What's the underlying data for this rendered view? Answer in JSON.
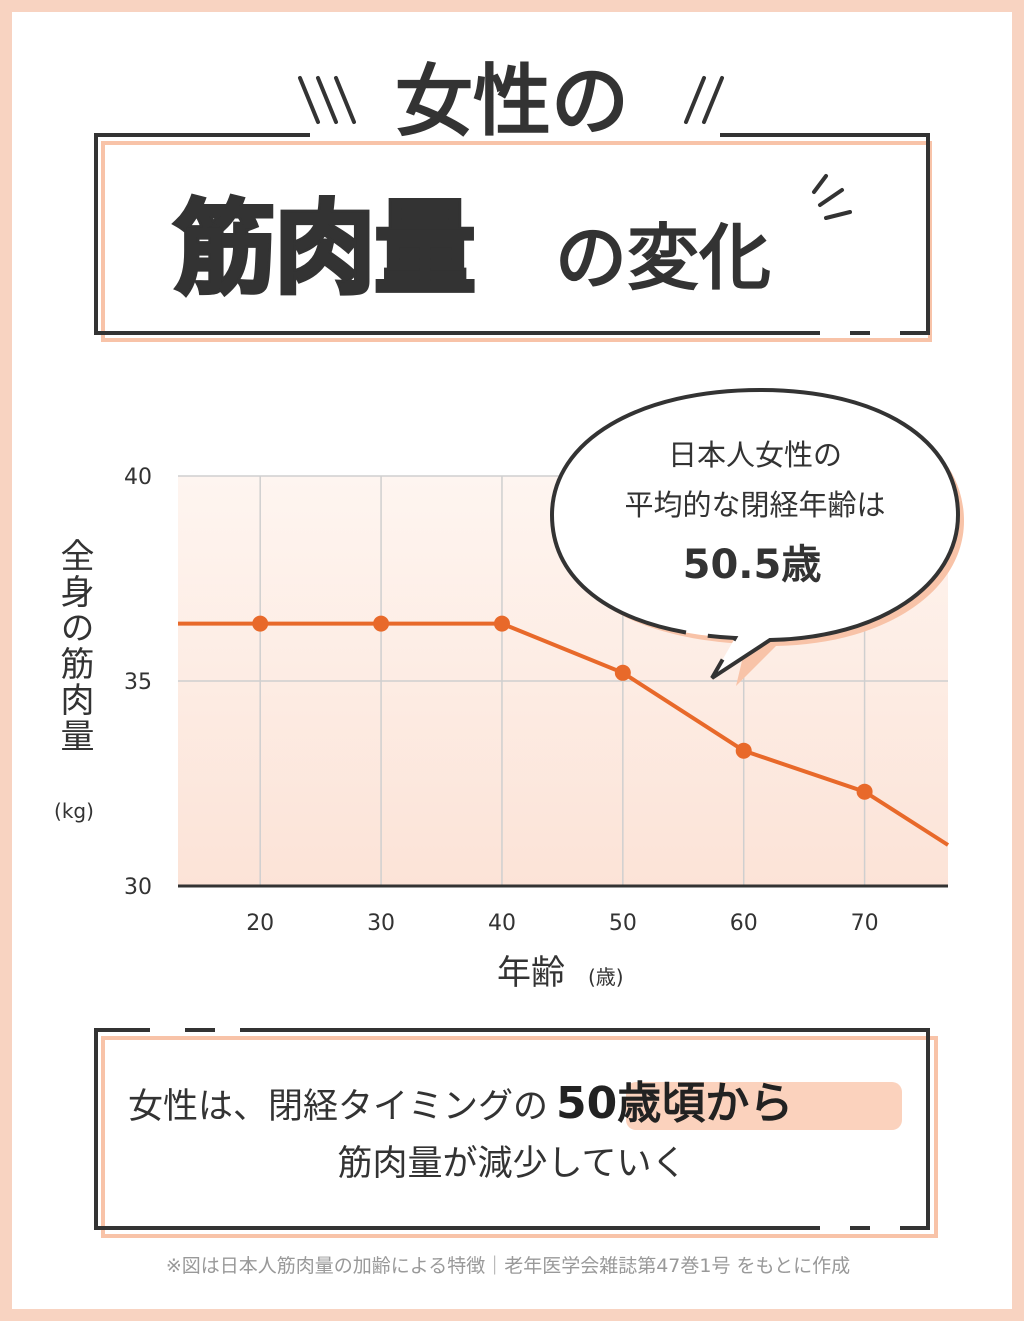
{
  "header": {
    "line1": "女性の",
    "highlight": "筋肉量",
    "line2": "の変化"
  },
  "chart_data": {
    "type": "line",
    "x": [
      13.2,
      20,
      30,
      40,
      50,
      60,
      70,
      76.9
    ],
    "series": [
      {
        "color": "#e8692a",
        "values": [
          36.4,
          36.4,
          36.4,
          36.4,
          35.2,
          33.3,
          32.3,
          31.0
        ]
      }
    ],
    "xlim": [
      13.2,
      76.9
    ],
    "ylim": [
      30,
      40
    ],
    "xticks": [
      20,
      30,
      40,
      50,
      60,
      70
    ],
    "yticks": [
      30,
      35,
      40
    ],
    "xlabel": "年齢",
    "xlabel_unit": "(歳)",
    "ylabel": "全身の筋肉量",
    "ylabel_unit": "(kg)",
    "grid": true,
    "annotation": {
      "line1": "日本人女性の",
      "line2": "平均的な閉経年齢は",
      "emphasis": "50.5歳"
    }
  },
  "summary": {
    "text1": "女性は、閉経タイミングの",
    "highlight": "50歳頃から",
    "text2": "筋肉量が減少していく"
  },
  "footnote": "※図は日本人筋肉量の加齢による特徴｜老年医学会雑誌第47巻1号 をもとに作成"
}
